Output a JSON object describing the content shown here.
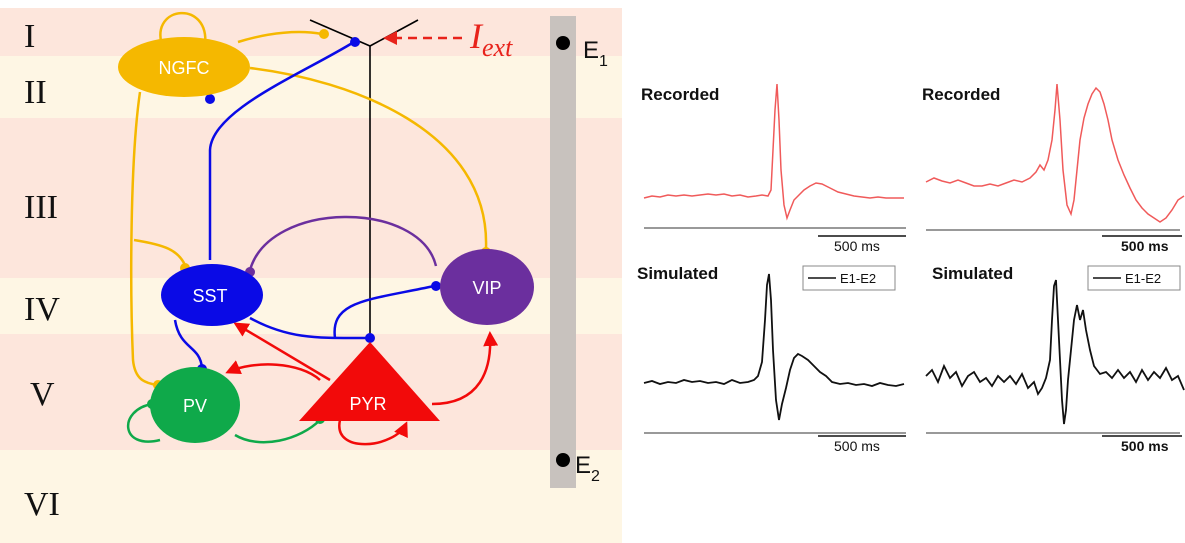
{
  "layers": [
    "I",
    "II",
    "III",
    "IV",
    "V",
    "VI"
  ],
  "cells": {
    "ngfc": "NGFC",
    "sst": "SST",
    "vip": "VIP",
    "pv": "PV",
    "pyr": "PYR"
  },
  "input": {
    "symbol": "I",
    "subscript": "ext"
  },
  "electrodes": {
    "e1": {
      "letter": "E",
      "sub": "1"
    },
    "e2": {
      "letter": "E",
      "sub": "2"
    }
  },
  "colors": {
    "ngfc": "#f5b800",
    "sst": "#0a0ae6",
    "vip": "#6b2f9e",
    "pv": "#0fa94a",
    "pyr": "#f20a0a",
    "layer_pink": "#fde6dc",
    "layer_cream": "#fef6e4",
    "electrode": "#c8c2be",
    "recorded_trace": "#f05a5a",
    "simulated_trace": "#111111"
  },
  "panels": {
    "top_left": {
      "title": "Recorded",
      "scale": "500 ms"
    },
    "top_right": {
      "title": "Recorded",
      "scale": "500 ms"
    },
    "bottom_left": {
      "title": "Simulated",
      "scale": "500 ms",
      "legend": "E1-E2"
    },
    "bottom_right": {
      "title": "Simulated",
      "scale": "500 ms",
      "legend": "E1-E2"
    }
  }
}
